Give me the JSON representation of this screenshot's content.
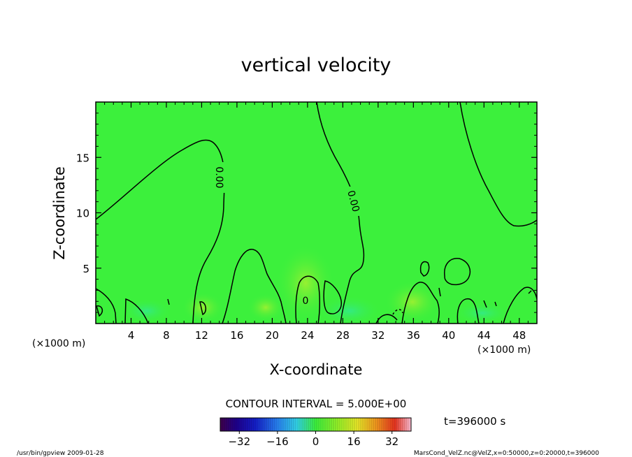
{
  "chart_data": {
    "type": "heatmap",
    "title": "vertical velocity",
    "xlabel": "X-coordinate",
    "ylabel": "Z-coordinate",
    "x_unit_left": "(×1000 m)",
    "x_unit_right": "(×1000 m)",
    "xlim": [
      0,
      50
    ],
    "ylim": [
      0,
      20
    ],
    "x_ticks": [
      4,
      8,
      12,
      16,
      20,
      24,
      28,
      32,
      36,
      40,
      44,
      48
    ],
    "y_ticks": [
      5,
      10,
      15
    ],
    "contour_interval_text": "CONTOUR INTERVAL = 5.000E+00",
    "contour_labels": [
      "0.00",
      "0.00",
      "0"
    ],
    "colorbar": {
      "min": -40,
      "max": 40,
      "ticks": [
        -32,
        -16,
        0,
        16,
        32
      ],
      "tick_labels": [
        "−32",
        "−16",
        "0",
        "16",
        "32"
      ]
    },
    "time_text": "t=396000 s",
    "footer_left": "/usr/bin/gpview   2009-01-28",
    "footer_right": "MarsCond_VelZ.nc@VelZ,x=0:50000,z=0:20000,t=396000",
    "field_color": "#3cf03c"
  }
}
